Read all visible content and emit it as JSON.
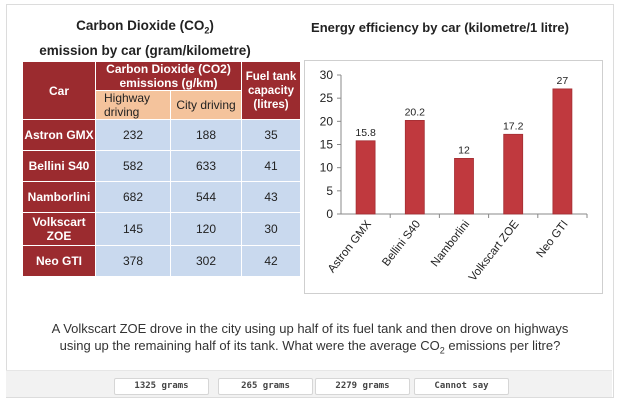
{
  "left_title_line1": "Carbon Dioxide (CO",
  "left_title_sub": "2",
  "left_title_line1_end": ")",
  "left_title_line2": "emission by car (gram/kilometre)",
  "table": {
    "col_car": "Car",
    "col_co2_line1": "Carbon Dioxide (CO2)",
    "col_co2_line2": "emissions (g/km)",
    "col_fuel": "Fuel tank capacity (litres)",
    "sub_highway": "Highway driving",
    "sub_city": "City driving",
    "rows": [
      {
        "car": "Astron GMX",
        "highway": "232",
        "city": "188",
        "fuel": "35"
      },
      {
        "car": "Bellini S40",
        "highway": "582",
        "city": "633",
        "fuel": "41"
      },
      {
        "car": "Namborlini",
        "highway": "682",
        "city": "544",
        "fuel": "43"
      },
      {
        "car": "Volkscart ZOE",
        "highway": "145",
        "city": "120",
        "fuel": "30"
      },
      {
        "car": "Neo GTI",
        "highway": "378",
        "city": "302",
        "fuel": "42"
      }
    ]
  },
  "chart_data": {
    "type": "bar",
    "title": "Energy efficiency by car (kilometre/1 litre)",
    "categories": [
      "Astron GMX",
      "Bellini S40",
      "Namborlini",
      "Volkscart ZOE",
      "Neo GTI"
    ],
    "values": [
      15.8,
      20.2,
      12,
      17.2,
      27
    ],
    "value_labels": [
      "15.8",
      "20.2",
      "12",
      "17.2",
      "27"
    ],
    "ylim": [
      0,
      30
    ],
    "yticks": [
      0,
      5,
      10,
      15,
      20,
      25,
      30
    ],
    "grid": false,
    "bar_color": "#c0393e"
  },
  "question_line1": "A Volkscart ZOE drove in the city using up half of its fuel tank and then drove on highways",
  "question_line2_a": "using up the remaining half of its tank. What were the average CO",
  "question_line2_sub": "2",
  "question_line2_b": " emissions per litre?",
  "answers": [
    "1325 grams",
    "265 grams",
    "2279 grams",
    "Cannot say"
  ]
}
